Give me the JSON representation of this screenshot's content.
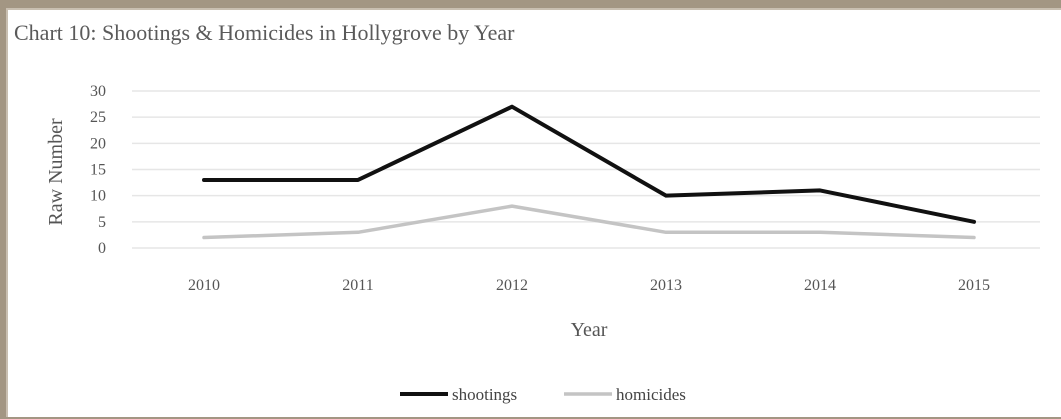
{
  "colors": {
    "background": "#a39683",
    "grid": "#e6e6e6",
    "shootings": "#111111",
    "homicides": "#c4c4c4"
  },
  "chart_data": {
    "type": "line",
    "title": "Chart 10: Shootings & Homicides in Hollygrove by Year",
    "xlabel": "Year",
    "ylabel": "Raw Number",
    "categories": [
      "2010",
      "2011",
      "2012",
      "2013",
      "2014",
      "2015"
    ],
    "ylim": [
      0,
      30
    ],
    "yticks": [
      "0",
      "5",
      "10",
      "15",
      "20",
      "25",
      "30"
    ],
    "grid": true,
    "legend": "bottom-center",
    "series": [
      {
        "name": "shootings",
        "values": [
          13,
          13,
          27,
          10,
          11,
          5
        ],
        "color": "#111111"
      },
      {
        "name": "homicides",
        "values": [
          2,
          3,
          8,
          3,
          3,
          2
        ],
        "color": "#c4c4c4"
      }
    ]
  }
}
